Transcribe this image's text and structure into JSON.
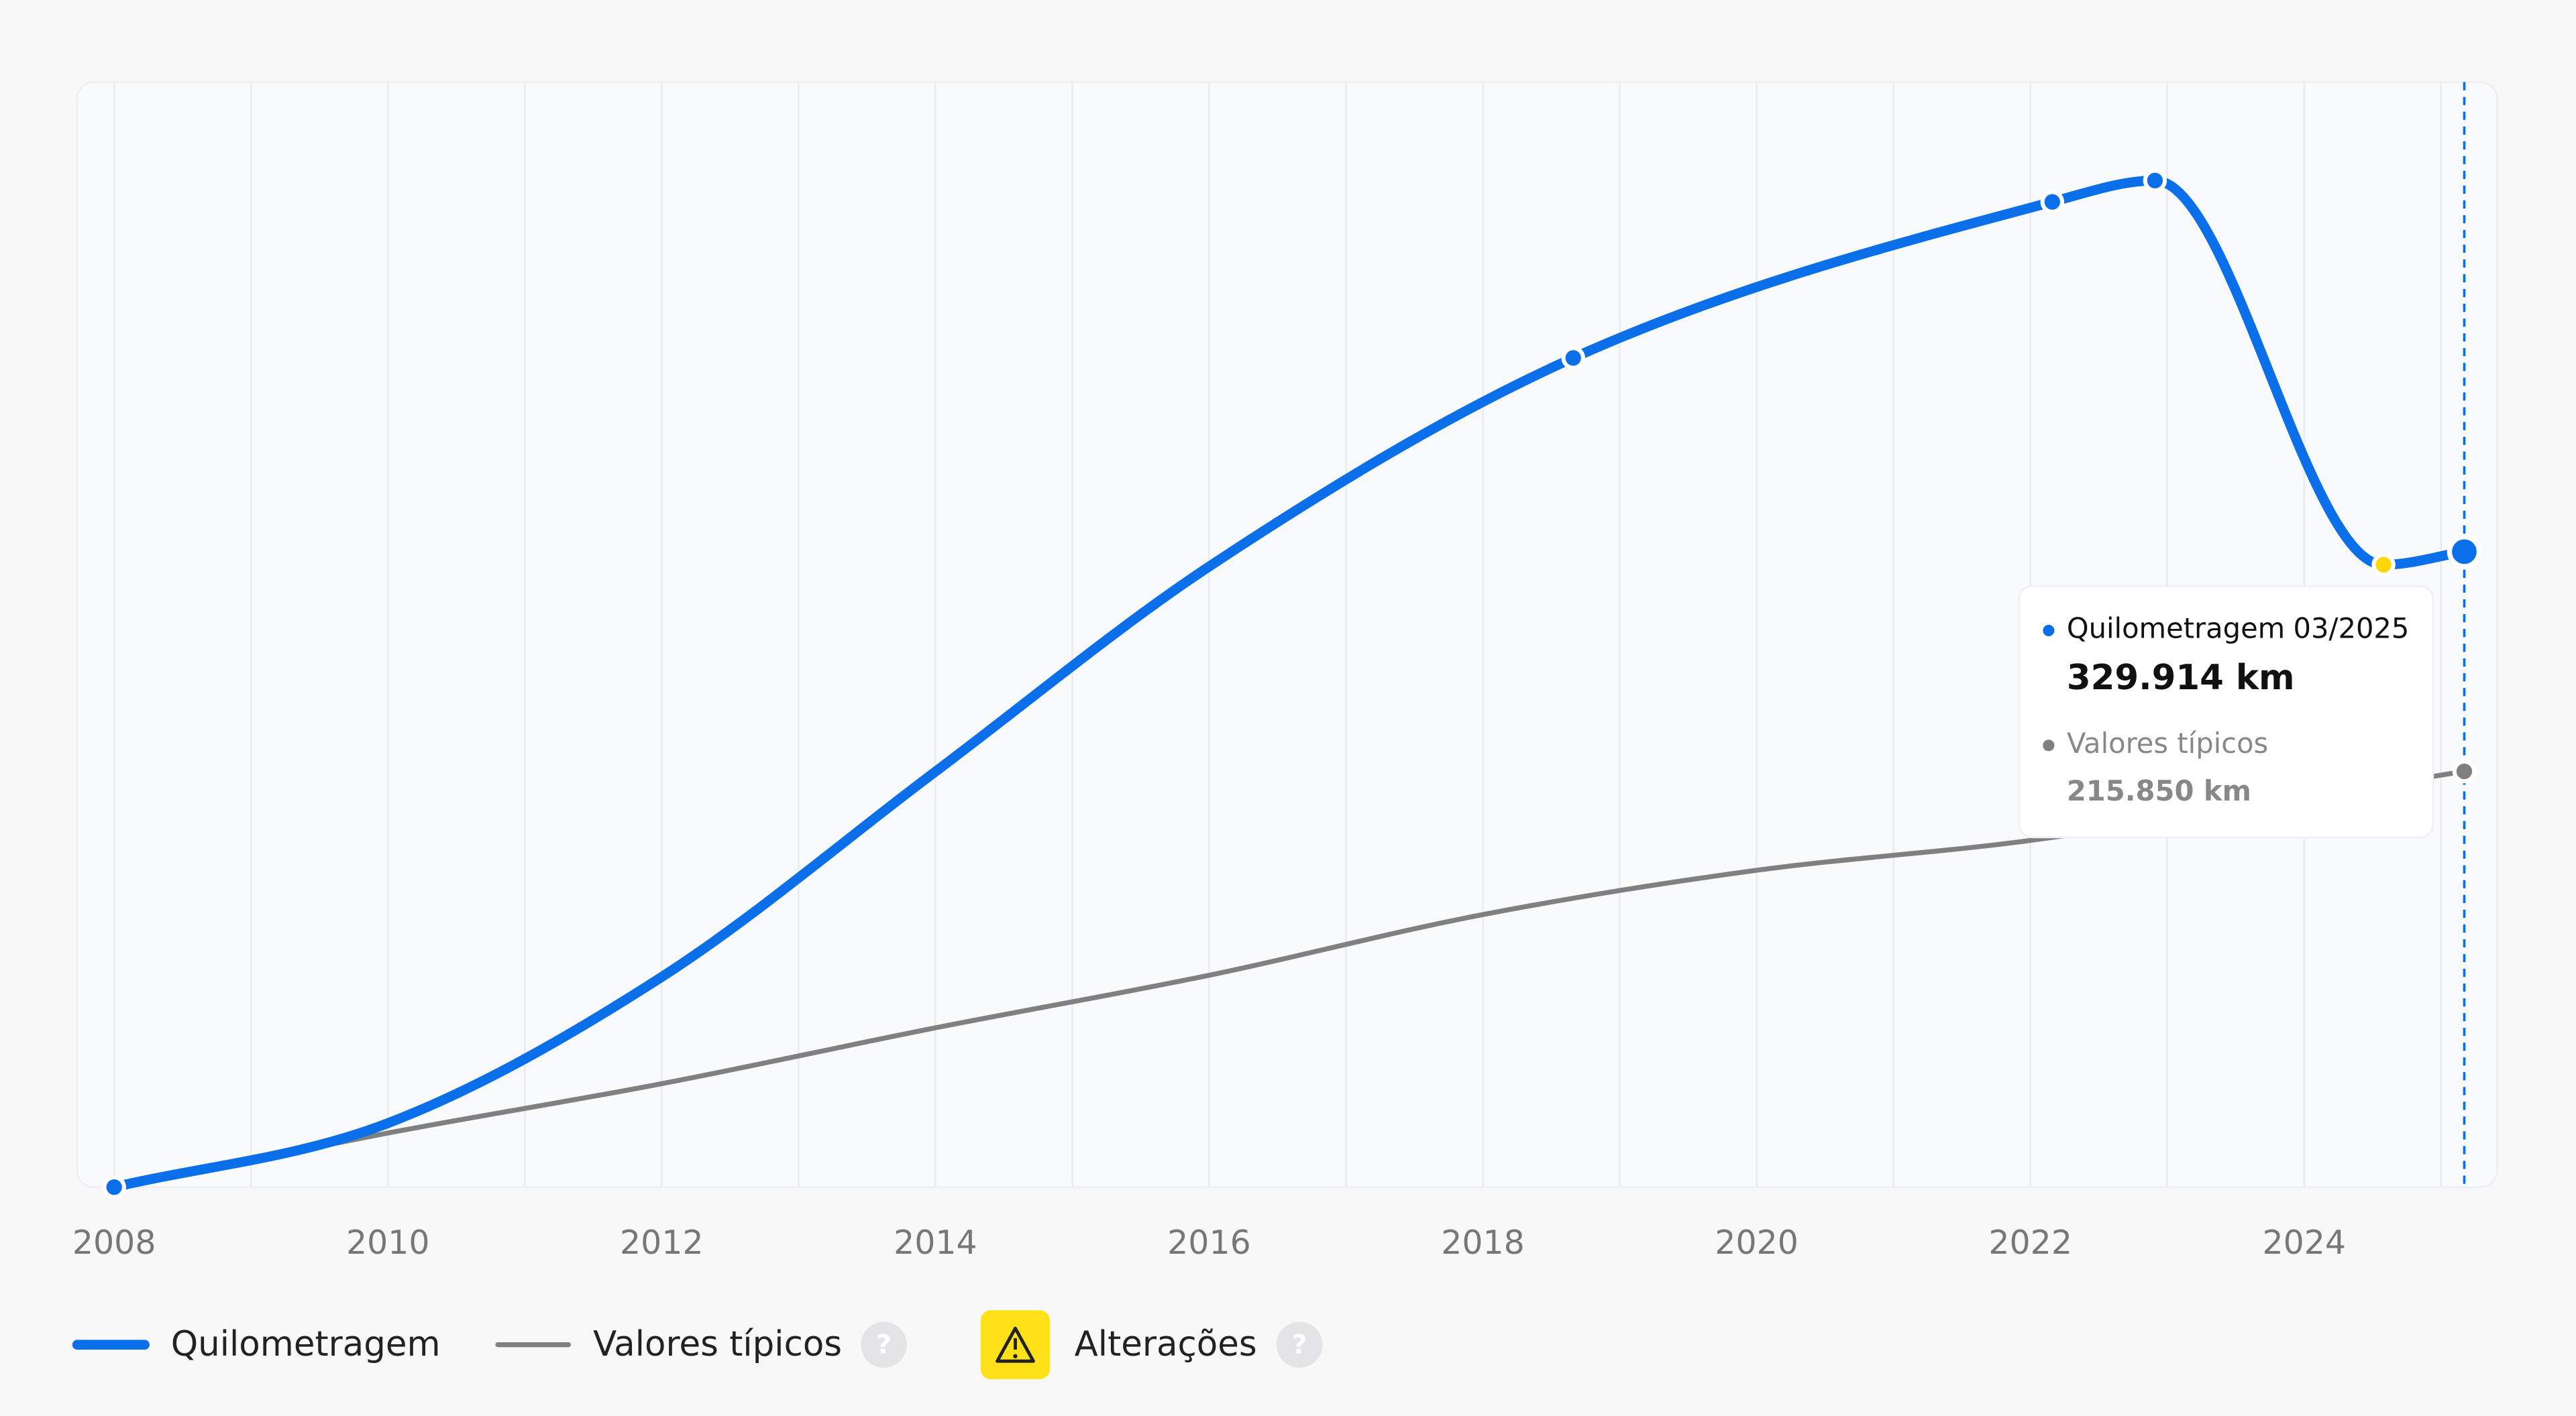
{
  "chart_data": {
    "type": "line",
    "xlim": [
      2007.73,
      2025.41
    ],
    "ylim": [
      0,
      573700
    ],
    "xticks": [
      2008,
      2010,
      2012,
      2014,
      2016,
      2018,
      2020,
      2022,
      2024
    ],
    "xgrid": [
      2008,
      2009,
      2010,
      2011,
      2012,
      2013,
      2014,
      2015,
      2016,
      2017,
      2018,
      2019,
      2020,
      2021,
      2022,
      2023,
      2024,
      2025
    ],
    "series": [
      {
        "name": "Quilometragem",
        "color": "#0a6fe8",
        "x": [
          2008.0,
          2010,
          2012,
          2014,
          2016,
          2018.66,
          2022.16,
          2022.91,
          2024.58,
          2025.17
        ],
        "values": [
          0,
          33200,
          109100,
          215700,
          322200,
          430500,
          511500,
          522600,
          323100,
          329914
        ],
        "marker_colors": [
          "#0a6fe8",
          null,
          null,
          null,
          null,
          "#0a6fe8",
          "#0a6fe8",
          "#0a6fe8",
          "#ffd600",
          "#0a6fe8"
        ],
        "value_labels": [
          null,
          null,
          null,
          null,
          null,
          null,
          null,
          null,
          null,
          "329.914 km"
        ]
      },
      {
        "name": "Valores típicos",
        "color": "#808080",
        "x": [
          2008,
          2010,
          2012,
          2014,
          2016,
          2018,
          2020,
          2022,
          2025.17
        ],
        "values": [
          0,
          28100,
          53700,
          82700,
          110000,
          141500,
          164500,
          180000,
          215850
        ],
        "marker_colors": [
          null,
          null,
          null,
          null,
          null,
          null,
          null,
          null,
          "#808080"
        ],
        "value_labels": [
          null,
          null,
          null,
          null,
          null,
          null,
          null,
          null,
          "215.850 km"
        ]
      }
    ],
    "tooltip_date": "03/2025",
    "alert_label": "Alterações"
  }
}
